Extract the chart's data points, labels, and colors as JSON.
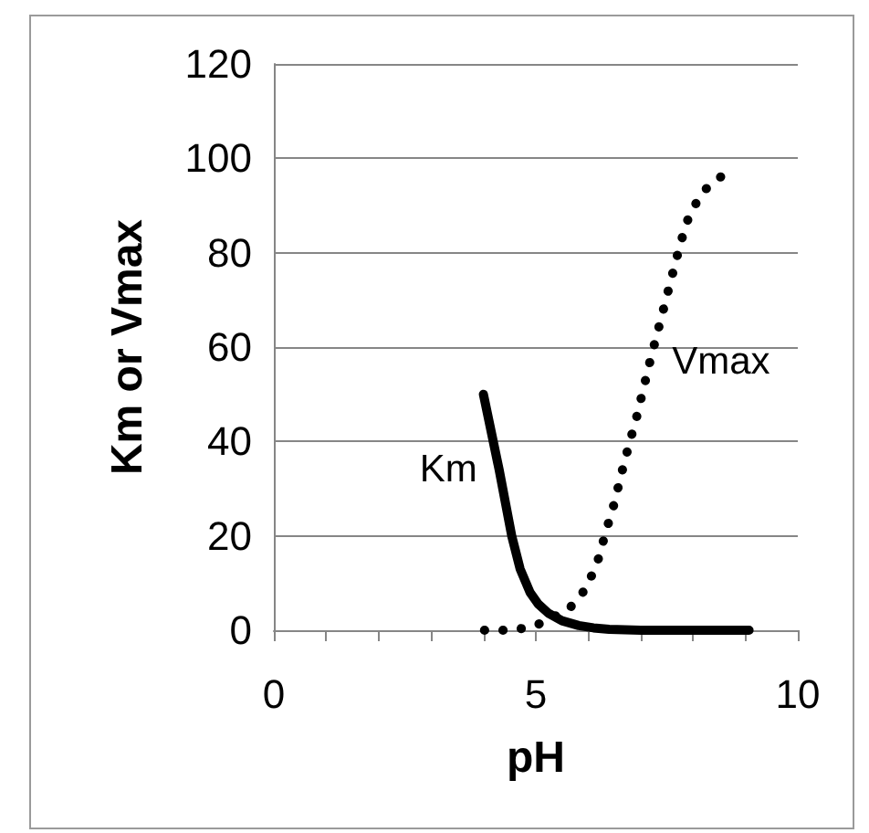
{
  "chart_data": {
    "type": "line",
    "xlabel": "pH",
    "ylabel": "Km or Vmax",
    "xlim": [
      0,
      10
    ],
    "xticks": [
      0,
      {
        "value": 1,
        "label": null
      },
      {
        "value": 2,
        "label": null
      },
      {
        "value": 3,
        "label": null
      },
      {
        "value": 4,
        "label": null
      },
      5,
      {
        "value": 6,
        "label": null
      },
      {
        "value": 7,
        "label": null
      },
      {
        "value": 8,
        "label": null
      },
      {
        "value": 9,
        "label": null
      },
      10
    ],
    "ylim": [
      0,
      120
    ],
    "yticks": [
      0,
      20,
      40,
      60,
      80,
      100,
      120
    ],
    "grid": "y",
    "legend": false,
    "series": [
      {
        "name": "Km",
        "color": "#000000",
        "line_style": "solid",
        "x": [
          4.0,
          4.3,
          4.54,
          4.7,
          4.89,
          5.05,
          5.24,
          5.5,
          5.82,
          6.1,
          6.4,
          7.0,
          8.0,
          9.07
        ],
        "values": [
          50,
          34,
          20,
          13,
          8,
          5.5,
          3.6,
          2,
          1,
          0.5,
          0.2,
          0,
          0,
          0
        ]
      },
      {
        "name": "Vmax",
        "color": "#000000",
        "line_style": "dotted",
        "x": [
          4.02,
          4.6,
          5.12,
          5.64,
          5.97,
          6.19,
          6.34,
          6.5,
          6.63,
          6.77,
          6.92,
          7.05,
          7.18,
          7.76,
          7.93,
          8.19,
          8.63
        ],
        "values": [
          0,
          0,
          1.5,
          4.6,
          9,
          15,
          21,
          27,
          33,
          39,
          45,
          51,
          57,
          82,
          88,
          93,
          97
        ]
      }
    ]
  }
}
